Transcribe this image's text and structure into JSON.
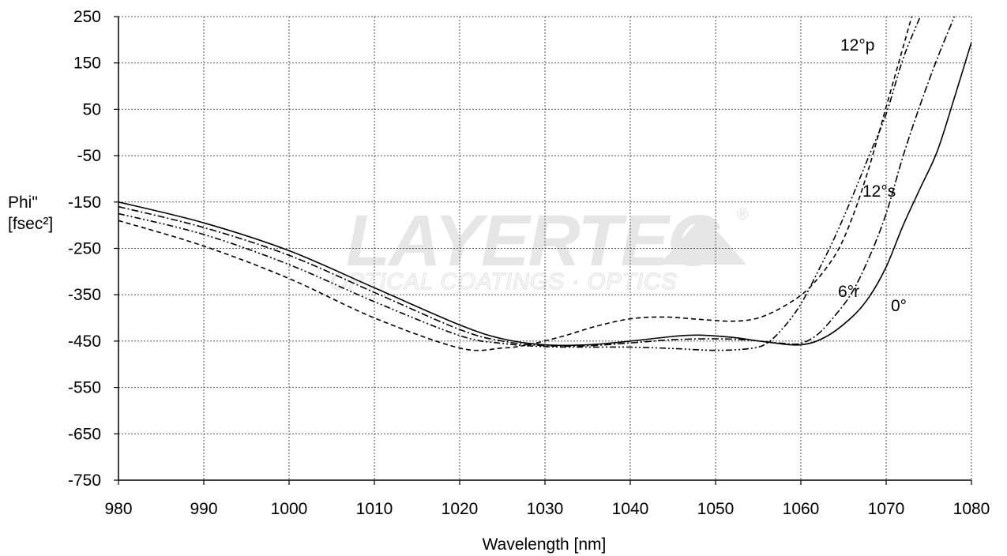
{
  "chart_data": {
    "type": "line",
    "title": "",
    "xlabel": "Wavelength [nm]",
    "ylabel_lines": [
      "Phi\"",
      "[fsec²]"
    ],
    "xlim": [
      980,
      1080
    ],
    "ylim": [
      -750,
      250
    ],
    "xticks": [
      980,
      990,
      1000,
      1010,
      1020,
      1030,
      1040,
      1050,
      1060,
      1070,
      1080
    ],
    "yticks": [
      -750,
      -650,
      -550,
      -450,
      -350,
      -250,
      -150,
      -50,
      50,
      150,
      250
    ],
    "grid": true,
    "legend": "none",
    "watermark": {
      "main": "LAYERTEC",
      "sub": "OPTICAL COATINGS · OPTICS",
      "reg": "®"
    },
    "series": [
      {
        "name": "0°",
        "dash": "solid",
        "points": [
          [
            980,
            -150
          ],
          [
            990,
            -195
          ],
          [
            1000,
            -255
          ],
          [
            1010,
            -335
          ],
          [
            1020,
            -415
          ],
          [
            1025,
            -445
          ],
          [
            1030,
            -458
          ],
          [
            1035,
            -458
          ],
          [
            1040,
            -450
          ],
          [
            1045,
            -440
          ],
          [
            1048,
            -437
          ],
          [
            1052,
            -442
          ],
          [
            1056,
            -452
          ],
          [
            1060,
            -458
          ],
          [
            1063,
            -440
          ],
          [
            1066,
            -398
          ],
          [
            1068,
            -355
          ],
          [
            1070,
            -290
          ],
          [
            1072,
            -200
          ],
          [
            1074,
            -120
          ],
          [
            1076,
            -40
          ],
          [
            1078,
            75
          ],
          [
            1080,
            195
          ]
        ]
      },
      {
        "name": "6°r",
        "dash": "dashdot",
        "points": [
          [
            980,
            -160
          ],
          [
            990,
            -205
          ],
          [
            1000,
            -265
          ],
          [
            1010,
            -345
          ],
          [
            1020,
            -425
          ],
          [
            1025,
            -450
          ],
          [
            1030,
            -460
          ],
          [
            1035,
            -460
          ],
          [
            1040,
            -454
          ],
          [
            1045,
            -447
          ],
          [
            1050,
            -445
          ],
          [
            1054,
            -448
          ],
          [
            1058,
            -455
          ],
          [
            1060,
            -455
          ],
          [
            1062,
            -435
          ],
          [
            1064,
            -395
          ],
          [
            1066,
            -345
          ],
          [
            1068,
            -270
          ],
          [
            1070,
            -175
          ],
          [
            1072,
            -50
          ],
          [
            1074,
            60
          ],
          [
            1076,
            160
          ],
          [
            1078,
            250
          ]
        ]
      },
      {
        "name": "12°s",
        "dash": "dashdotdot",
        "points": [
          [
            980,
            -175
          ],
          [
            990,
            -220
          ],
          [
            1000,
            -285
          ],
          [
            1010,
            -365
          ],
          [
            1020,
            -438
          ],
          [
            1025,
            -455
          ],
          [
            1030,
            -462
          ],
          [
            1035,
            -463
          ],
          [
            1040,
            -463
          ],
          [
            1045,
            -466
          ],
          [
            1050,
            -470
          ],
          [
            1054,
            -466
          ],
          [
            1056,
            -455
          ],
          [
            1058,
            -420
          ],
          [
            1060,
            -370
          ],
          [
            1062,
            -300
          ],
          [
            1064,
            -225
          ],
          [
            1066,
            -140
          ],
          [
            1068,
            -50
          ],
          [
            1070,
            40
          ],
          [
            1072,
            160
          ],
          [
            1074,
            250
          ]
        ]
      },
      {
        "name": "12°p",
        "dash": "dashed",
        "points": [
          [
            980,
            -190
          ],
          [
            990,
            -245
          ],
          [
            1000,
            -315
          ],
          [
            1010,
            -400
          ],
          [
            1020,
            -465
          ],
          [
            1025,
            -465
          ],
          [
            1028,
            -458
          ],
          [
            1032,
            -440
          ],
          [
            1036,
            -418
          ],
          [
            1040,
            -402
          ],
          [
            1044,
            -398
          ],
          [
            1048,
            -403
          ],
          [
            1052,
            -407
          ],
          [
            1055,
            -400
          ],
          [
            1058,
            -375
          ],
          [
            1061,
            -335
          ],
          [
            1064,
            -265
          ],
          [
            1066,
            -185
          ],
          [
            1068,
            -75
          ],
          [
            1070,
            55
          ],
          [
            1072,
            185
          ],
          [
            1073,
            250
          ]
        ]
      }
    ],
    "series_labels": [
      "12°p",
      "12°s",
      "6°r",
      "0°"
    ]
  }
}
